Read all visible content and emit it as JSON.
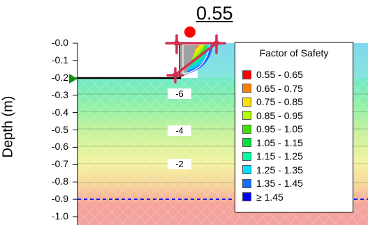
{
  "factor_of_safety": "0.55",
  "y_axis": {
    "label": "Depth (m)",
    "ticks": [
      "-0.0",
      "-0.1",
      "-0.2",
      "-0.3",
      "-0.4",
      "-0.5",
      "-0.6",
      "-0.7",
      "-0.8",
      "-0.9",
      "-1.0"
    ]
  },
  "contour_labels": [
    "-6",
    "-4",
    "-2"
  ],
  "legend": {
    "title": "Factor of Safety",
    "items": [
      {
        "label": "0.55 - 0.65",
        "color": "#ff0000"
      },
      {
        "label": "0.65 - 0.75",
        "color": "#ff8000"
      },
      {
        "label": "0.75 - 0.85",
        "color": "#ffdf00"
      },
      {
        "label": "0.85 - 0.95",
        "color": "#b0ff00"
      },
      {
        "label": "0.95 - 1.05",
        "color": "#40e000"
      },
      {
        "label": "1.05 - 1.15",
        "color": "#00e040"
      },
      {
        "label": "1.15 - 1.25",
        "color": "#00ffa0"
      },
      {
        "label": "1.25 - 1.35",
        "color": "#00e0ff"
      },
      {
        "label": "1.35 - 1.45",
        "color": "#1070ff"
      },
      {
        "label": "≥ 1.45",
        "color": "#0000ff"
      }
    ]
  },
  "colors": {
    "water_table": "#1020e0",
    "anchor": "#d03050",
    "slip_marker": "#ff0000",
    "boundary_point": "#109010"
  }
}
